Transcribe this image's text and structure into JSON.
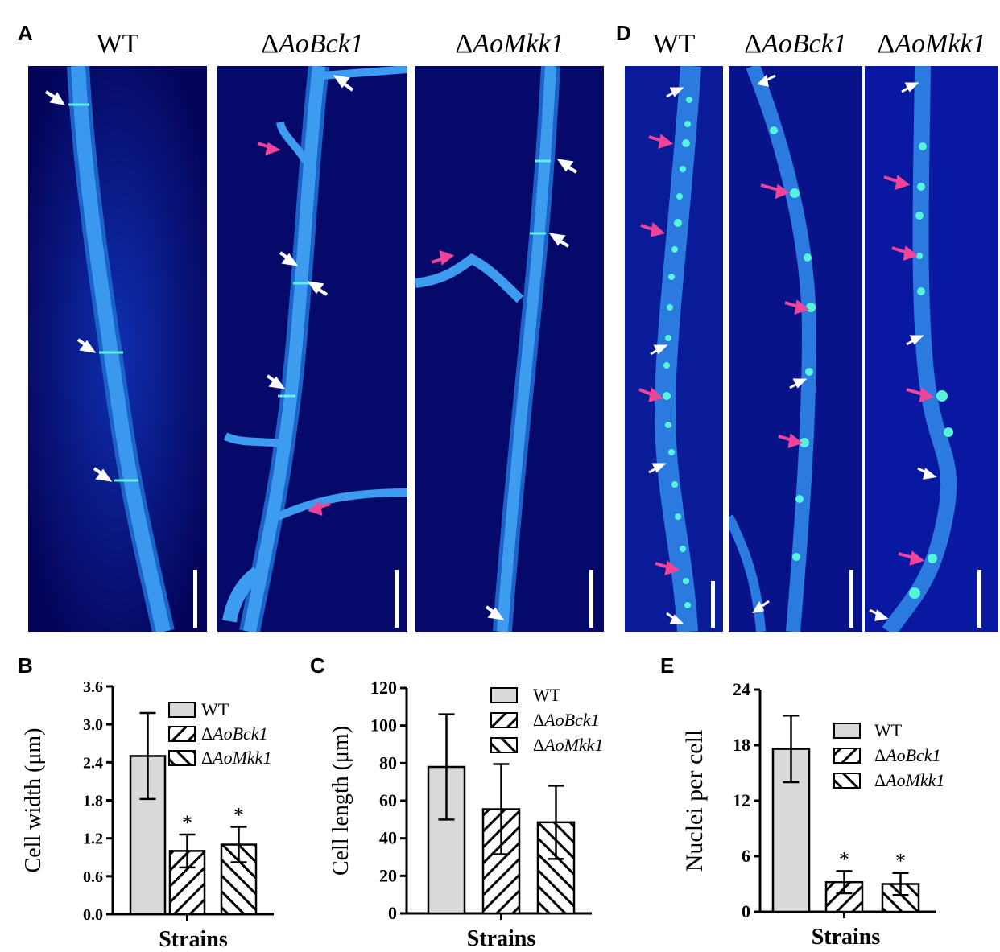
{
  "panels": {
    "a": {
      "letter": "A",
      "titles": [
        {
          "prefix": "",
          "name": "WT"
        },
        {
          "prefix": "Δ",
          "name": "AoBck1"
        },
        {
          "prefix": "Δ",
          "name": "AoMkk1"
        }
      ]
    },
    "b": {
      "letter": "B"
    },
    "c": {
      "letter": "C"
    },
    "d": {
      "letter": "D",
      "titles": [
        {
          "prefix": "",
          "name": "WT"
        },
        {
          "prefix": "Δ",
          "name": "AoBck1"
        },
        {
          "prefix": "Δ",
          "name": "AoMkk1"
        }
      ]
    },
    "e": {
      "letter": "E"
    }
  },
  "colors": {
    "background": "#04045a",
    "hypha": "#2f8de6",
    "septum": "#62f0e6",
    "nucleus": "#54f5d8",
    "white_arrow": "#ffffff",
    "magenta_arrow": "#f0449a",
    "bar_wt": "#d9d9d9"
  },
  "chart_data": [
    {
      "id": "B",
      "type": "bar",
      "categories": [
        "WT",
        "ΔAoBck1",
        "ΔAoMkk1"
      ],
      "values": [
        2.5,
        1.0,
        1.1
      ],
      "errors": [
        0.68,
        0.26,
        0.28
      ],
      "significance": [
        "",
        "*",
        "*"
      ],
      "xlabel": "Strains",
      "ylabel": "Cell width (μm)",
      "ylim": [
        0,
        3.6
      ],
      "yticks": [
        "0.0",
        "0.6",
        "1.2",
        "1.8",
        "2.4",
        "3.0",
        "3.6"
      ],
      "legend": [
        "WT",
        "ΔAoBck1",
        "ΔAoMkk1"
      ],
      "legend_position": "top-right"
    },
    {
      "id": "C",
      "type": "bar",
      "categories": [
        "WT",
        "ΔAoBck1",
        "ΔAoMkk1"
      ],
      "values": [
        78,
        55.5,
        48.5
      ],
      "errors": [
        28,
        24,
        19.5
      ],
      "significance": [
        "",
        "",
        ""
      ],
      "xlabel": "Strains",
      "ylabel": "Cell length (μm)",
      "ylim": [
        0,
        120
      ],
      "yticks": [
        "0",
        "20",
        "40",
        "60",
        "80",
        "100",
        "120"
      ],
      "legend": [
        "WT",
        "ΔAoBck1",
        "ΔAoMkk1"
      ],
      "legend_position": "top-right"
    },
    {
      "id": "E",
      "type": "bar",
      "categories": [
        "WT",
        "ΔAoBck1",
        "ΔAoMkk1"
      ],
      "values": [
        17.6,
        3.2,
        3.0
      ],
      "errors": [
        3.6,
        1.2,
        1.2
      ],
      "significance": [
        "",
        "*",
        "*"
      ],
      "xlabel": "Strains",
      "ylabel": "Nuclei per cell",
      "ylim": [
        0,
        24
      ],
      "yticks": [
        "0",
        "6",
        "12",
        "18",
        "24"
      ],
      "legend": [
        "WT",
        "ΔAoBck1",
        "ΔAoMkk1"
      ],
      "legend_position": "top-right"
    }
  ]
}
